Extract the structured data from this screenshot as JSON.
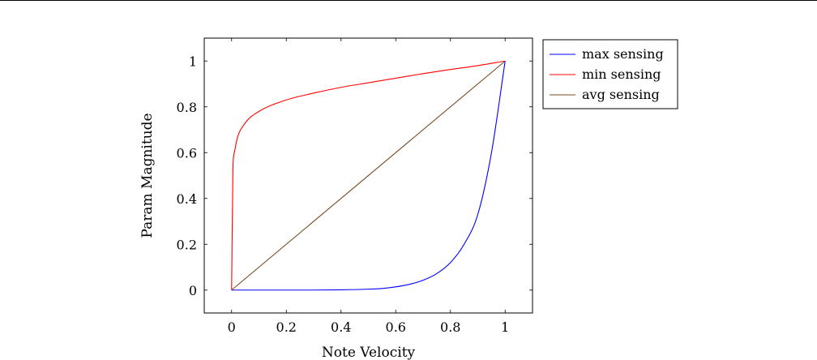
{
  "chart_data": {
    "type": "line",
    "title": "",
    "xlabel": "Note Velocity",
    "ylabel": "Param Magnitude",
    "xlim": [
      -0.1,
      1.1
    ],
    "ylim": [
      -0.1,
      1.1
    ],
    "xticks": [
      0,
      0.2,
      0.4,
      0.6,
      0.8,
      1
    ],
    "yticks": [
      0,
      0.2,
      0.4,
      0.6,
      0.8,
      1
    ],
    "xtick_labels": [
      "0",
      "0.2",
      "0.4",
      "0.6",
      "0.8",
      "1"
    ],
    "ytick_labels": [
      "0",
      "0.2",
      "0.4",
      "0.6",
      "0.8",
      "1"
    ],
    "grid": false,
    "legend_position": "outside-top-right",
    "series": [
      {
        "name": "max sensing",
        "color": "#0000ff",
        "x": [
          0,
          0.1,
          0.2,
          0.3,
          0.4,
          0.5,
          0.55,
          0.6,
          0.65,
          0.7,
          0.75,
          0.8,
          0.85,
          0.9,
          0.95,
          1
        ],
        "y": [
          0,
          0,
          0,
          0,
          0.001,
          0.004,
          0.007,
          0.014,
          0.025,
          0.043,
          0.072,
          0.12,
          0.2,
          0.33,
          0.6,
          1
        ]
      },
      {
        "name": "min sensing",
        "color": "#ff0000",
        "x": [
          0,
          0.005,
          0.01,
          0.02,
          0.05,
          0.1,
          0.2,
          0.3,
          0.4,
          0.5,
          0.6,
          0.7,
          0.8,
          0.9,
          1
        ],
        "y": [
          0,
          0.54,
          0.6,
          0.66,
          0.73,
          0.78,
          0.83,
          0.86,
          0.885,
          0.905,
          0.925,
          0.945,
          0.963,
          0.98,
          1
        ]
      },
      {
        "name": "avg sensing",
        "color": "#7a4a1f",
        "x": [
          0,
          1
        ],
        "y": [
          0,
          1
        ]
      }
    ]
  }
}
